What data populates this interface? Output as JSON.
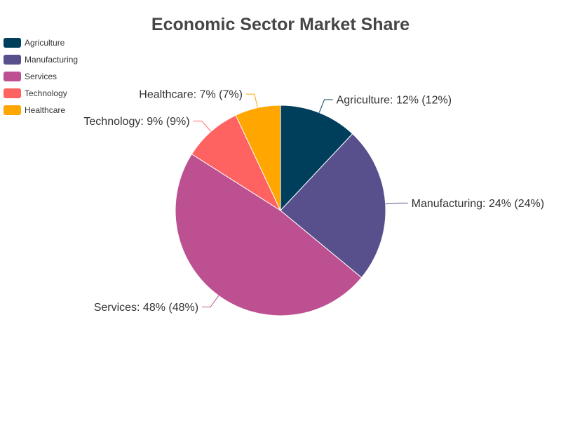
{
  "chart_data": {
    "type": "pie",
    "title": "Economic Sector Market Share",
    "categories": [
      "Agriculture",
      "Manufacturing",
      "Services",
      "Technology",
      "Healthcare"
    ],
    "values": [
      12,
      24,
      48,
      9,
      7
    ],
    "colors": [
      "#003f5c",
      "#58508d",
      "#bc5090",
      "#ff6361",
      "#ffa600"
    ],
    "labels": [
      "Agriculture: 12% (12%)",
      "Manufacturing: 24% (24%)",
      "Services: 48% (48%)",
      "Technology: 9% (9%)",
      "Healthcare: 7% (7%)"
    ],
    "legend_position": "top-left",
    "start_angle": "12 o'clock",
    "direction": "clockwise"
  }
}
